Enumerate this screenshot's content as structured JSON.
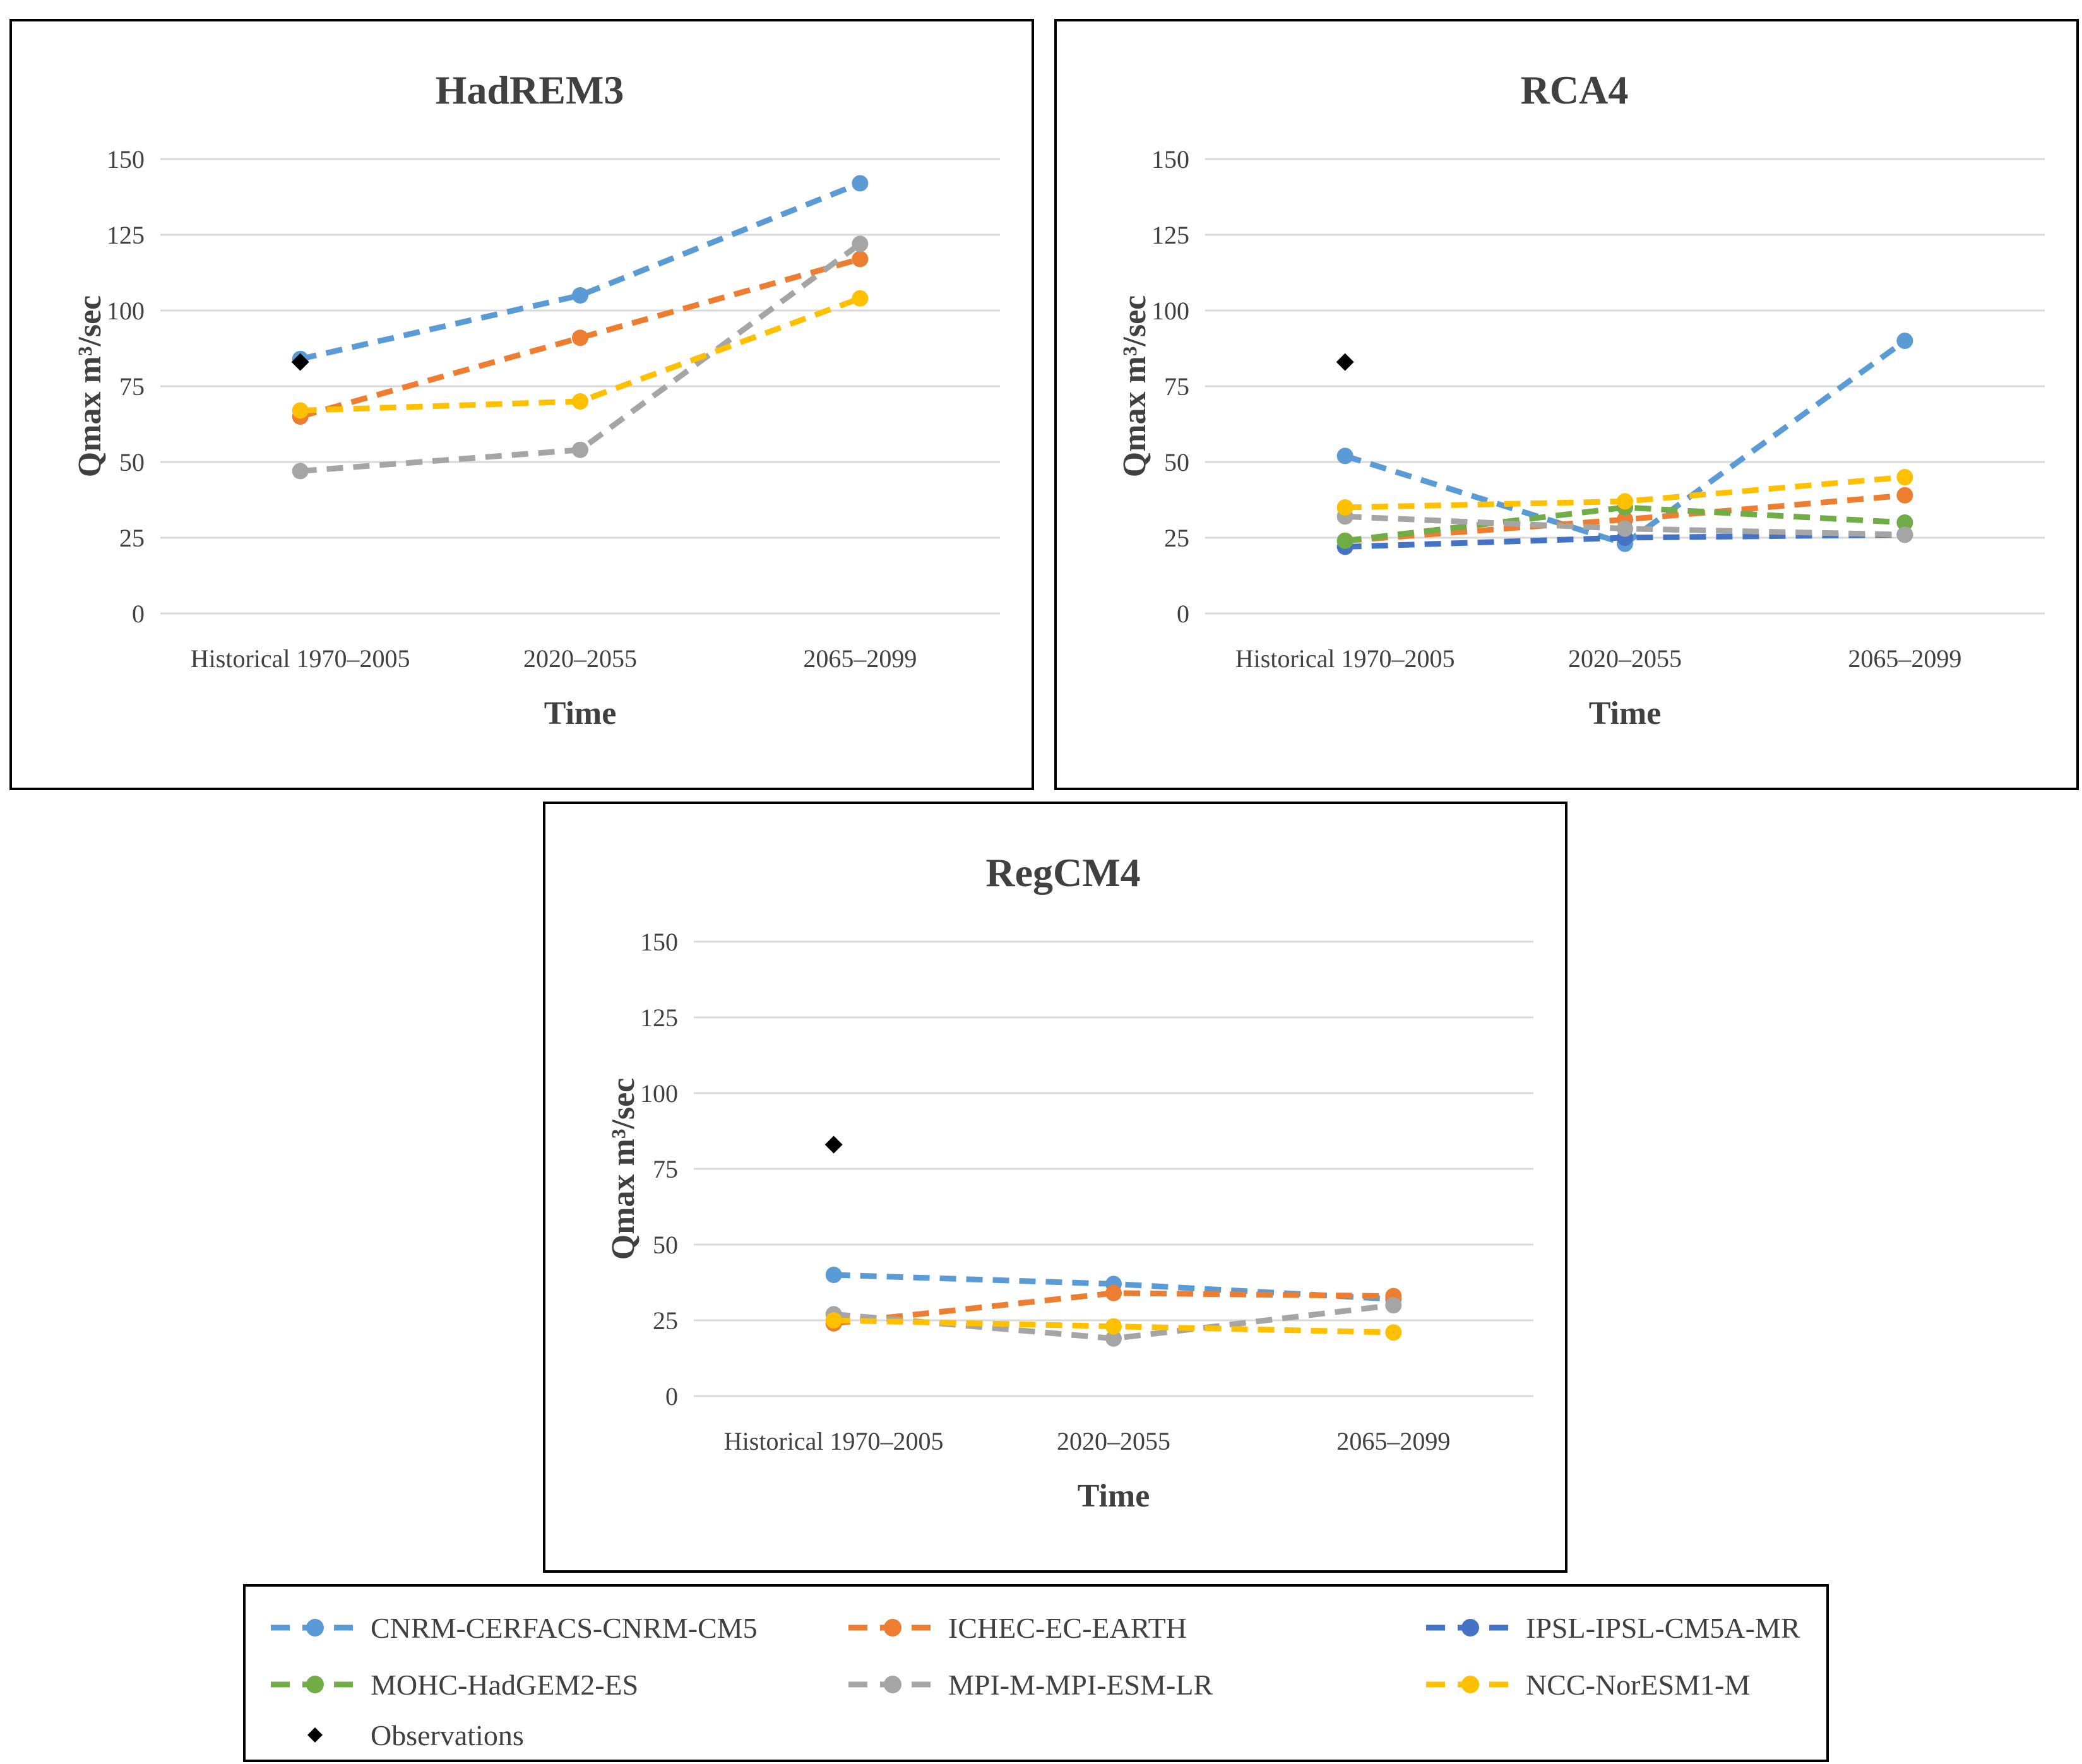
{
  "chart_data": [
    {
      "type": "line",
      "title": "HadREM3",
      "xlabel": "Time",
      "ylabel": "Qmax m³/sec",
      "categories": [
        "Historical 1970–2005",
        "2020–2055",
        "2065–2099"
      ],
      "ylim": [
        0,
        150
      ],
      "yticks": [
        0,
        25,
        50,
        75,
        100,
        125,
        150
      ],
      "series": [
        {
          "name": "CNRM-CERFACS-CNRM-CM5",
          "values": [
            84,
            105,
            142
          ]
        },
        {
          "name": "ICHEC-EC-EARTH",
          "values": [
            65,
            91,
            117
          ]
        },
        {
          "name": "MPI-M-MPI-ESM-LR",
          "values": [
            47,
            54,
            122
          ]
        },
        {
          "name": "NCC-NorESM1-M",
          "values": [
            67,
            70,
            104
          ]
        }
      ],
      "observations": 83
    },
    {
      "type": "line",
      "title": "RCA4",
      "xlabel": "Time",
      "ylabel": "Qmax m³/sec",
      "categories": [
        "Historical 1970–2005",
        "2020–2055",
        "2065–2099"
      ],
      "ylim": [
        0,
        150
      ],
      "yticks": [
        0,
        25,
        50,
        75,
        100,
        125,
        150
      ],
      "series": [
        {
          "name": "CNRM-CERFACS-CNRM-CM5",
          "values": [
            52,
            23,
            90
          ]
        },
        {
          "name": "ICHEC-EC-EARTH",
          "values": [
            24,
            31,
            39
          ]
        },
        {
          "name": "IPSL-IPSL-CM5A-MR",
          "values": [
            22,
            25,
            26
          ]
        },
        {
          "name": "MOHC-HadGEM2-ES",
          "values": [
            24,
            35,
            30
          ]
        },
        {
          "name": "MPI-M-MPI-ESM-LR",
          "values": [
            32,
            28,
            26
          ]
        },
        {
          "name": "NCC-NorESM1-M",
          "values": [
            35,
            37,
            45
          ]
        }
      ],
      "observations": 83
    },
    {
      "type": "line",
      "title": "RegCM4",
      "xlabel": "Time",
      "ylabel": "Qmax m³/sec",
      "categories": [
        "Historical 1970–2005",
        "2020–2055",
        "2065–2099"
      ],
      "ylim": [
        0,
        150
      ],
      "yticks": [
        0,
        25,
        50,
        75,
        100,
        125,
        150
      ],
      "series": [
        {
          "name": "CNRM-CERFACS-CNRM-CM5",
          "values": [
            40,
            37,
            32
          ]
        },
        {
          "name": "ICHEC-EC-EARTH",
          "values": [
            24,
            34,
            33
          ]
        },
        {
          "name": "MPI-M-MPI-ESM-LR",
          "values": [
            27,
            19,
            30
          ]
        },
        {
          "name": "NCC-NorESM1-M",
          "values": [
            25,
            23,
            21
          ]
        }
      ],
      "observations": 83
    }
  ],
  "series_colors": {
    "CNRM-CERFACS-CNRM-CM5": "#5b9bd5",
    "ICHEC-EC-EARTH": "#ed7d31",
    "IPSL-IPSL-CM5A-MR": "#4472c4",
    "MOHC-HadGEM2-ES": "#70ad47",
    "MPI-M-MPI-ESM-LR": "#a5a5a5",
    "NCC-NorESM1-M": "#ffc000",
    "Observations": "#000000"
  },
  "legend": {
    "items": [
      {
        "label": "CNRM-CERFACS-CNRM-CM5",
        "marker": "line-circle"
      },
      {
        "label": "ICHEC-EC-EARTH",
        "marker": "line-circle"
      },
      {
        "label": "IPSL-IPSL-CM5A-MR",
        "marker": "line-circle"
      },
      {
        "label": "MOHC-HadGEM2-ES",
        "marker": "line-circle"
      },
      {
        "label": "MPI-M-MPI-ESM-LR",
        "marker": "line-circle"
      },
      {
        "label": "NCC-NorESM1-M",
        "marker": "line-circle"
      },
      {
        "label": "Observations",
        "marker": "diamond"
      }
    ]
  }
}
